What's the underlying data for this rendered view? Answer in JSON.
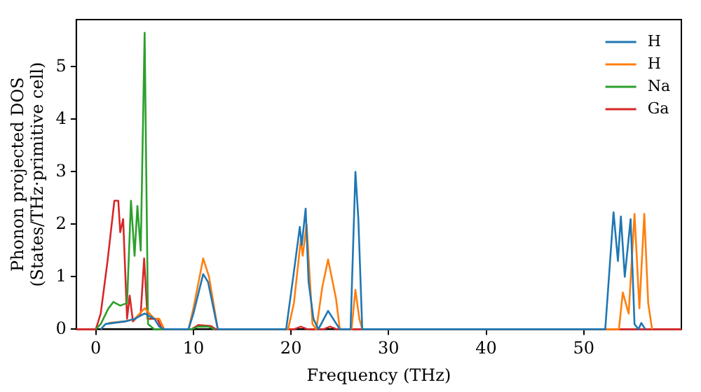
{
  "chart_data": {
    "type": "line",
    "xlabel": "Frequency (THz)",
    "ylabel": "Phonon projected DOS\n(States/THz·primitive cell)",
    "xlim": [
      -2,
      60
    ],
    "ylim": [
      0,
      5.9
    ],
    "xticks": [
      0,
      10,
      20,
      30,
      40,
      50
    ],
    "yticks": [
      0,
      1,
      2,
      3,
      4,
      5
    ],
    "grid": false,
    "legend": "top right",
    "marker": "none",
    "line_style": "solid",
    "series": [
      {
        "name": "H",
        "color": "#1f77b4",
        "x": [
          0.5,
          1,
          3,
          4,
          5,
          6,
          6.5,
          7,
          9.5,
          10,
          11,
          11.5,
          12.5,
          19.5,
          20.3,
          20.9,
          21.1,
          21.5,
          21.8,
          22.3,
          22.8,
          23.8,
          25,
          26.1,
          26.6,
          26.9,
          27.3,
          52.2,
          53.05,
          53.5,
          53.8,
          54.2,
          54.8,
          55.2,
          55.6,
          55.9,
          56.3
        ],
        "values": [
          0,
          0.1,
          0.15,
          0.2,
          0.3,
          0.2,
          0.05,
          0,
          0,
          0.3,
          1.05,
          0.9,
          0,
          0,
          1.1,
          1.95,
          1.6,
          2.3,
          0.9,
          0.2,
          0,
          0.35,
          0,
          0,
          3.0,
          2.1,
          0,
          0,
          2.23,
          1.3,
          2.15,
          1.0,
          2.1,
          0.1,
          0,
          0.12,
          0
        ]
      },
      {
        "name": "H",
        "color": "#ff7f0e",
        "x": [
          1.3,
          3,
          4,
          5,
          6,
          6.5,
          7,
          9.5,
          10,
          11,
          11.6,
          12.5,
          19.7,
          20.3,
          21.0,
          21.2,
          21.6,
          22.2,
          22.6,
          23.2,
          23.8,
          24.6,
          25,
          26.2,
          26.6,
          27,
          27.3,
          53.6,
          54,
          54.6,
          55.2,
          55.7,
          56.2,
          56.6,
          57
        ],
        "values": [
          0.12,
          0.15,
          0.2,
          0.4,
          0.2,
          0.2,
          0,
          0,
          0.4,
          1.35,
          1.0,
          0,
          0,
          0.5,
          1.7,
          1.4,
          2.0,
          0.1,
          0,
          0.8,
          1.33,
          0.6,
          0,
          0,
          0.75,
          0.2,
          0,
          0,
          0.7,
          0.3,
          2.2,
          0.4,
          2.2,
          0.5,
          0
        ]
      },
      {
        "name": "Na",
        "color": "#2ca02c",
        "x": [
          0,
          0.5,
          1.3,
          1.8,
          2.5,
          3.2,
          3.6,
          3.97,
          4.26,
          4.6,
          5.0,
          5.35,
          6,
          9.8,
          10.5,
          11.5,
          12.2
        ],
        "values": [
          0,
          0.1,
          0.4,
          0.52,
          0.45,
          0.5,
          2.45,
          1.4,
          2.35,
          1.5,
          5.65,
          0.1,
          0,
          0,
          0.05,
          0.05,
          0
        ]
      },
      {
        "name": "Ga",
        "color": "#d62728",
        "x": [
          -2,
          0,
          0.5,
          1.2,
          1.9,
          2.3,
          2.5,
          2.8,
          3.2,
          3.47,
          3.8,
          4.6,
          4.95,
          5.3,
          6.3,
          6.8,
          9.8,
          10.5,
          11.8,
          12.3,
          20.3,
          21,
          21.7,
          23.3,
          24,
          24.7,
          60
        ],
        "values": [
          0,
          0,
          0.3,
          1.3,
          2.45,
          2.45,
          1.85,
          2.1,
          0.2,
          0.64,
          0.15,
          0.3,
          1.35,
          0.2,
          0.2,
          0,
          0,
          0.08,
          0.06,
          0,
          0,
          0.05,
          0,
          0,
          0.05,
          0,
          0
        ]
      }
    ]
  }
}
